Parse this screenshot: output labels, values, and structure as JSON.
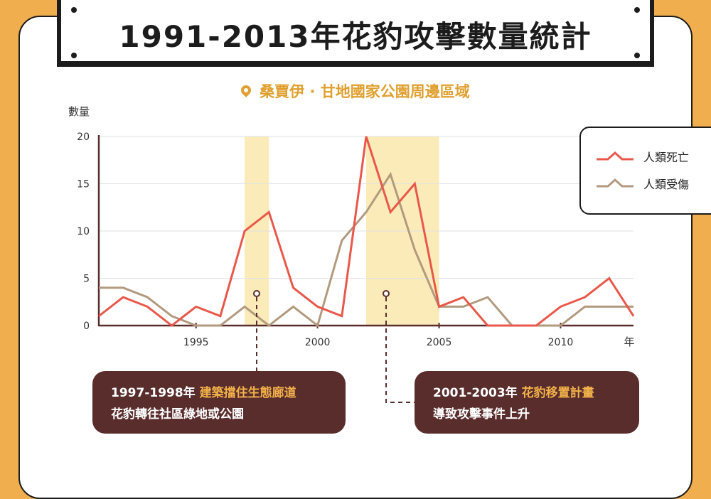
{
  "header": {
    "title": "1991-2013年花豹攻擊數量統計",
    "subtitle": "桑賈伊 · 甘地國家公園周邊區域"
  },
  "callouts": [
    {
      "period": "1997-1998年",
      "highlight": "建築擋住生態廊道",
      "text": "花豹轉往社區綠地或公園"
    },
    {
      "period": "2001-2003年",
      "highlight": "花豹移置計畫",
      "text": "導致攻擊事件上升"
    }
  ],
  "colors": {
    "deaths": "#E8584A",
    "injuries": "#B29A7E",
    "highlight": "#FBEBB8",
    "accent": "#E0A030"
  },
  "chart_data": {
    "type": "line",
    "xlabel": "年",
    "ylabel": "數量",
    "x": [
      1991,
      1992,
      1993,
      1994,
      1995,
      1996,
      1997,
      1998,
      1999,
      2000,
      2001,
      2002,
      2003,
      2004,
      2005,
      2006,
      2007,
      2008,
      2009,
      2010,
      2011,
      2012,
      2013
    ],
    "xticks": [
      "1995",
      "2000",
      "2005",
      "2010"
    ],
    "xlim": [
      1991,
      2013
    ],
    "ylim": [
      0,
      20
    ],
    "yticks": [
      "0",
      "5",
      "10",
      "15",
      "20"
    ],
    "grid": true,
    "legend_position": "right",
    "series": [
      {
        "name": "人類死亡",
        "values": [
          1,
          3,
          2,
          0,
          2,
          1,
          10,
          12,
          4,
          2,
          1,
          20,
          12,
          15,
          2,
          3,
          0,
          0,
          0,
          2,
          3,
          5,
          1
        ]
      },
      {
        "name": "人類受傷",
        "values": [
          4,
          4,
          3,
          1,
          0,
          0,
          2,
          0,
          2,
          0,
          9,
          12,
          16,
          8,
          2,
          2,
          3,
          0,
          0,
          0,
          2,
          2,
          2
        ]
      }
    ],
    "highlight_ranges": [
      [
        1997,
        1998
      ],
      [
        2002,
        2005
      ]
    ]
  }
}
